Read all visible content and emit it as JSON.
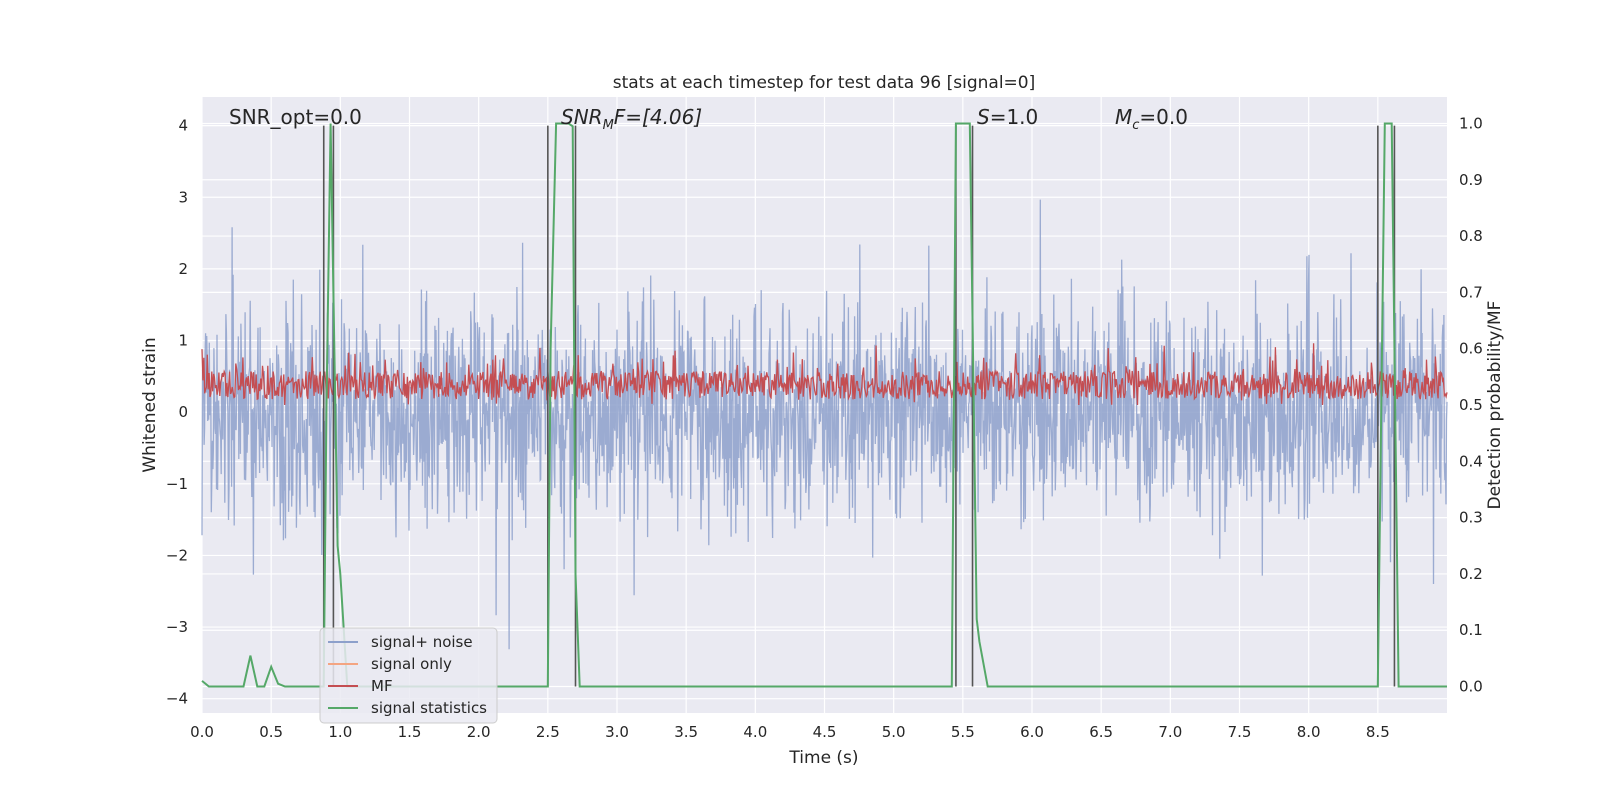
{
  "chart_data": {
    "type": "line",
    "title": "stats at each timestep for test data 96 [signal=0]",
    "xlabel": "Time (s)",
    "ylabel_left": "Whitened strain",
    "ylabel_right": "Detection probability/MF",
    "xlim": [
      0.0,
      9.0
    ],
    "ylim_left": [
      -4.2,
      4.4
    ],
    "ylim_right": [
      -0.047,
      1.047
    ],
    "x_ticks": [
      "0.0",
      "0.5",
      "1.0",
      "1.5",
      "2.0",
      "2.5",
      "3.0",
      "3.5",
      "4.0",
      "4.5",
      "5.0",
      "5.5",
      "6.0",
      "6.5",
      "7.0",
      "7.5",
      "8.0",
      "8.5"
    ],
    "y_left_ticks": [
      "−4",
      "−3",
      "−2",
      "−1",
      "0",
      "1",
      "2",
      "3",
      "4"
    ],
    "y_right_ticks": [
      "0.0",
      "0.1",
      "0.2",
      "0.3",
      "0.4",
      "0.5",
      "0.6",
      "0.7",
      "0.8",
      "0.9",
      "1.0"
    ],
    "grid": true,
    "legend_position": "lower-left",
    "annotations": {
      "snr_opt": "SNR_opt=0.0",
      "snr_mf_main": "SNR",
      "snr_mf_sub": "M",
      "snr_mf_rest": "F=[4.06]",
      "s_main": "S",
      "s_rest": "=1.0",
      "mc_main": "M",
      "mc_sub": "c",
      "mc_rest": "=0.0"
    },
    "series": [
      {
        "name": "signal+ noise",
        "color": "#8da0cb",
        "axis": "left",
        "description_values": "stationary whitened noise, amplitude mostly within [-2.5, 2.5], peaks to about ±3.8"
      },
      {
        "name": "signal only",
        "color": "#f4a582",
        "axis": "left",
        "values": []
      },
      {
        "name": "MF",
        "color": "#c44e52",
        "axis": "right",
        "description_values": "matched-filter output fluctuating between about 0.50 and 0.61"
      },
      {
        "name": "signal statistics",
        "color": "#55a868",
        "axis": "right",
        "x": [
          0.0,
          0.05,
          0.1,
          0.15,
          0.2,
          0.25,
          0.3,
          0.35,
          0.4,
          0.45,
          0.5,
          0.55,
          0.6,
          0.65,
          0.7,
          0.75,
          0.8,
          0.85,
          0.88,
          0.9,
          0.93,
          0.95,
          0.98,
          1.0,
          1.05,
          1.1,
          1.2,
          2.5,
          2.52,
          2.56,
          2.6,
          2.65,
          2.68,
          2.7,
          2.73,
          2.8,
          5.42,
          5.45,
          5.5,
          5.55,
          5.6,
          5.62,
          5.68,
          5.75,
          8.5,
          8.55,
          8.6,
          8.65,
          8.7,
          9.0
        ],
        "y": [
          0.01,
          0.0,
          0.0,
          0.0,
          0.0,
          0.0,
          0.0,
          0.055,
          0.0,
          0.0,
          0.035,
          0.005,
          0.0,
          0.0,
          0.0,
          0.0,
          0.0,
          0.0,
          0.0,
          0.5,
          1.0,
          0.7,
          0.25,
          0.2,
          0.0,
          0.0,
          0.0,
          0.0,
          0.6,
          1.0,
          1.0,
          1.0,
          0.995,
          0.2,
          0.0,
          0.0,
          0.0,
          1.0,
          1.0,
          1.0,
          0.12,
          0.08,
          0.0,
          0.0,
          0.0,
          1.0,
          1.0,
          0.0,
          0.0,
          0.0
        ]
      }
    ],
    "vertical_markers_x": [
      0.88,
      0.95,
      2.5,
      2.7,
      5.45,
      5.57,
      8.5,
      8.62
    ],
    "vertical_marker_color": "#555555"
  }
}
